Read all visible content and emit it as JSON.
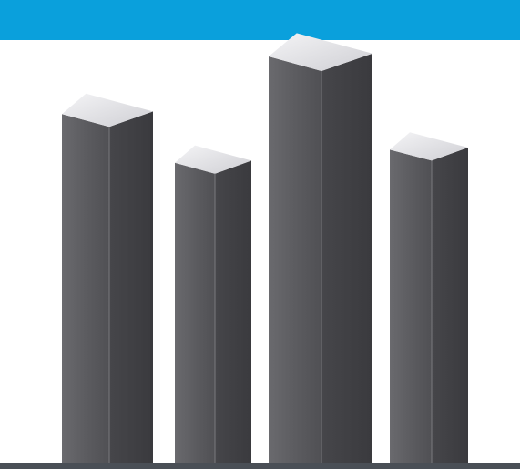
{
  "colors": {
    "band": "#0aa0dc",
    "background": "#ffffff",
    "bar_front": "#5e5e62",
    "bar_side": "#47474b",
    "bar_top": "#e4e4e8",
    "base_line": "#4a4f56"
  },
  "bars": [
    {
      "name": "bar-1",
      "relative_height": 0.86
    },
    {
      "name": "bar-2",
      "relative_height": 0.74
    },
    {
      "name": "bar-3",
      "relative_height": 1.0
    },
    {
      "name": "bar-4",
      "relative_height": 0.77
    }
  ]
}
